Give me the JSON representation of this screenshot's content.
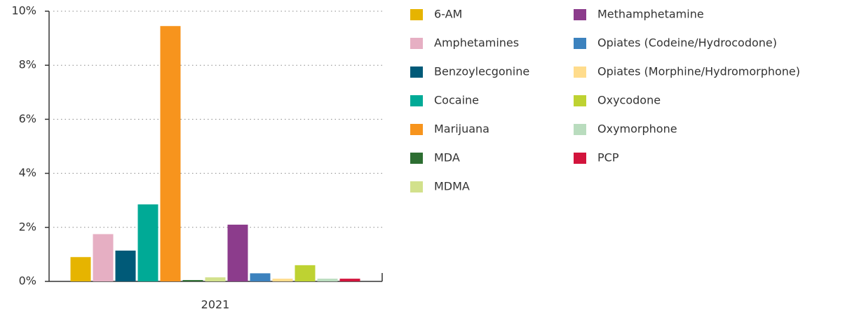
{
  "chart_data": {
    "type": "bar",
    "categories": [
      "2021"
    ],
    "series": [
      {
        "name": "6-AM",
        "color": "#e6b400",
        "values": [
          0.9
        ]
      },
      {
        "name": "Amphetamines",
        "color": "#e6afc3",
        "values": [
          1.75
        ]
      },
      {
        "name": "Benzoylecgonine",
        "color": "#005a78",
        "values": [
          1.14
        ]
      },
      {
        "name": "Cocaine",
        "color": "#00aa96",
        "values": [
          2.85
        ]
      },
      {
        "name": "Marijuana",
        "color": "#f7941d",
        "values": [
          9.45
        ]
      },
      {
        "name": "MDA",
        "color": "#2d6e32",
        "values": [
          0.05
        ]
      },
      {
        "name": "MDMA",
        "color": "#d2e18c",
        "values": [
          0.15
        ]
      },
      {
        "name": "Methamphetamine",
        "color": "#8c3c8c",
        "values": [
          2.1
        ]
      },
      {
        "name": "Opiates (Codeine/Hydrocodone)",
        "color": "#3c82be",
        "values": [
          0.3
        ]
      },
      {
        "name": "Opiates (Morphine/Hydromorphone)",
        "color": "#ffdc8c",
        "values": [
          0.1
        ]
      },
      {
        "name": "Oxycodone",
        "color": "#bed232",
        "values": [
          0.6
        ]
      },
      {
        "name": "Oxymorphone",
        "color": "#b9dcbe",
        "values": [
          0.1
        ]
      },
      {
        "name": "PCP",
        "color": "#d2143c",
        "values": [
          0.1
        ]
      }
    ],
    "ylim": [
      0,
      10
    ],
    "yticks": [
      {
        "value": 0,
        "label": "0%"
      },
      {
        "value": 2,
        "label": "2%"
      },
      {
        "value": 4,
        "label": "4%"
      },
      {
        "value": 6,
        "label": "6%"
      },
      {
        "value": 8,
        "label": "8%"
      },
      {
        "value": 10,
        "label": "10%"
      }
    ],
    "grid": true,
    "legend": "right"
  }
}
